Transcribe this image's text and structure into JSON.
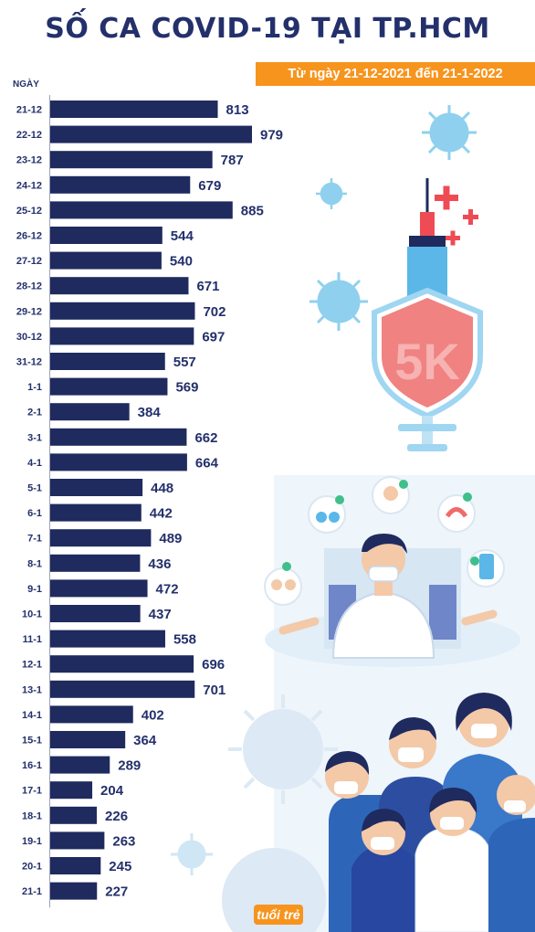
{
  "header": {
    "title": "SỐ CA COVID-19 TẠI TP.HCM",
    "subtitle": "Từ ngày 21-12-2021 đến 21-1-2022"
  },
  "illustration": {
    "shield_text": "5K",
    "logo_text": "tuổi trẻ"
  },
  "colors": {
    "bar": "#1f2a5e",
    "title": "#23306b",
    "accent": "#f7941d",
    "shield": "#f08282",
    "virus": "#8fd0ee"
  },
  "chart_data": {
    "type": "bar",
    "orientation": "horizontal",
    "ylabel": "NGÀY",
    "categories": [
      "21-12",
      "22-12",
      "23-12",
      "24-12",
      "25-12",
      "26-12",
      "27-12",
      "28-12",
      "29-12",
      "30-12",
      "31-12",
      "1-1",
      "2-1",
      "3-1",
      "4-1",
      "5-1",
      "6-1",
      "7-1",
      "8-1",
      "9-1",
      "10-1",
      "11-1",
      "12-1",
      "13-1",
      "14-1",
      "15-1",
      "16-1",
      "17-1",
      "18-1",
      "19-1",
      "20-1",
      "21-1"
    ],
    "values": [
      813,
      979,
      787,
      679,
      885,
      544,
      540,
      671,
      702,
      697,
      557,
      569,
      384,
      662,
      664,
      448,
      442,
      489,
      436,
      472,
      437,
      558,
      696,
      701,
      402,
      364,
      289,
      204,
      226,
      263,
      245,
      227
    ],
    "grid": false
  }
}
